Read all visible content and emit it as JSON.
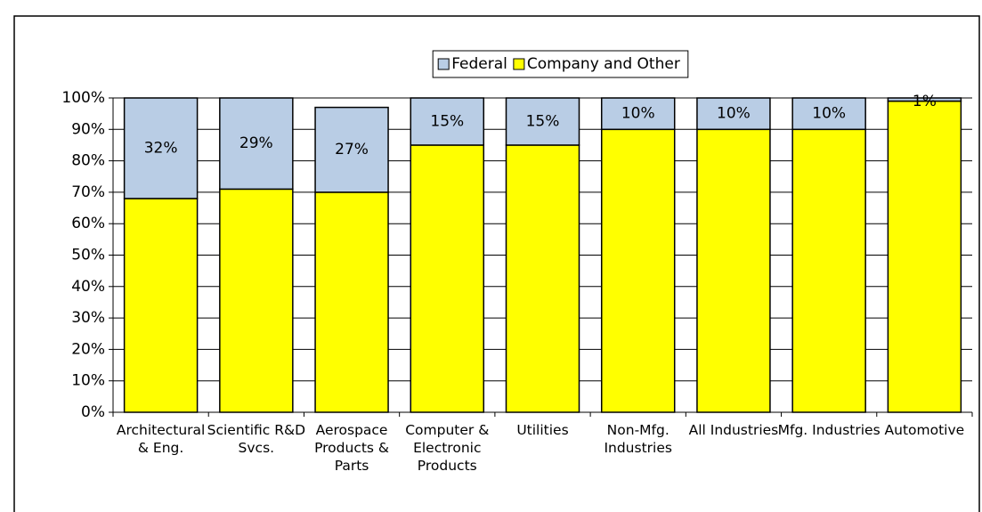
{
  "chart_data": {
    "type": "bar",
    "stacked": true,
    "categories": [
      "Architectural & Eng.",
      "Scientific R&D Svcs.",
      "Aerospace Products & Parts",
      "Computer & Electronic Products",
      "Utilities",
      "Non-Mfg. Industries",
      "All Industries",
      "Mfg. Industries",
      "Automotive"
    ],
    "series": [
      {
        "name": "Company and Other",
        "color": "#ffff00",
        "values": [
          68,
          71,
          70,
          85,
          85,
          90,
          90,
          90,
          99
        ]
      },
      {
        "name": "Federal",
        "color": "#b9cde5",
        "values": [
          32,
          29,
          27,
          15,
          15,
          10,
          10,
          10,
          1
        ],
        "value_labels": [
          "32%",
          "29%",
          "27%",
          "15%",
          "15%",
          "10%",
          "10%",
          "10%",
          "1%"
        ]
      }
    ],
    "legend_order": [
      "Federal",
      "Company and Other"
    ],
    "ylim": [
      0,
      100
    ],
    "yticks": [
      {
        "value": 0,
        "label": "0%"
      },
      {
        "value": 10,
        "label": "10%"
      },
      {
        "value": 20,
        "label": "20%"
      },
      {
        "value": 30,
        "label": "30%"
      },
      {
        "value": 40,
        "label": "40%"
      },
      {
        "value": 50,
        "label": "50%"
      },
      {
        "value": 60,
        "label": "60%"
      },
      {
        "value": 70,
        "label": "70%"
      },
      {
        "value": 80,
        "label": "80%"
      },
      {
        "value": 90,
        "label": "90%"
      },
      {
        "value": 100,
        "label": "100%"
      }
    ],
    "grid": true
  }
}
